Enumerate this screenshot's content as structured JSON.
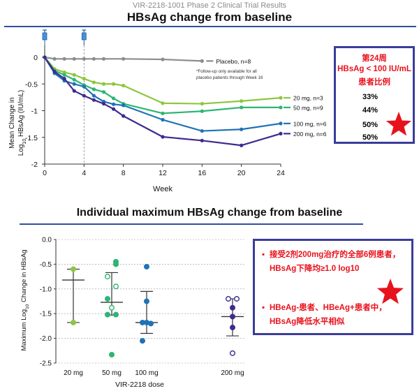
{
  "header": {
    "supertitle": "VIR-2218-1001 Phase 2 Clinical Trial Results",
    "title_top": "HBsAg change from baseline",
    "title_bottom": "Individual maximum HBsAg change from baseline"
  },
  "colors": {
    "accent_rule": "#2f4f9e",
    "box_border": "#3a3d9a",
    "highlight_red": "#e8121c",
    "star": "#e8121c"
  },
  "chart_data": [
    {
      "type": "line",
      "title": "HBsAg change from baseline",
      "xlabel": "Week",
      "ylabel": "Mean Change in Log10 HBsAg (IU/mL)",
      "ylabel_main": "Mean Change in",
      "ylabel_log_prefix": "Log",
      "ylabel_log_sub": "10",
      "ylabel_log_suffix": " HBsAg (IU/mL)",
      "xlim": [
        0,
        24
      ],
      "ylim": [
        -2,
        0.15
      ],
      "x_ticks": [
        0,
        4,
        8,
        12,
        16,
        20,
        24
      ],
      "y_ticks": [
        0,
        -0.5,
        -1,
        -1.5,
        -2
      ],
      "y_tick_labels": [
        "0",
        "-0.5",
        "-1",
        "-1.5",
        "-2"
      ],
      "dose_weeks": [
        0,
        4
      ],
      "annotation": "*Follow-up only available for all placebo patients through Week 16",
      "annotation_line1": "*Follow-up only available for all",
      "annotation_line2": "placebo patients through Week 16",
      "series": [
        {
          "name": "Placebo, n=8",
          "color": "#8c8c8c",
          "x": [
            0,
            1,
            2,
            3,
            4,
            5,
            6,
            8,
            12,
            16
          ],
          "y": [
            0,
            -0.03,
            -0.03,
            -0.03,
            -0.03,
            -0.03,
            -0.03,
            -0.03,
            -0.04,
            -0.07
          ]
        },
        {
          "name": "20 mg, n=3",
          "color": "#8dc63f",
          "x": [
            0,
            1,
            2,
            3,
            4,
            5,
            6,
            7,
            8,
            12,
            16,
            20,
            24
          ],
          "y": [
            0,
            -0.22,
            -0.28,
            -0.33,
            -0.4,
            -0.47,
            -0.5,
            -0.5,
            -0.53,
            -0.86,
            -0.87,
            -0.82,
            -0.76
          ]
        },
        {
          "name": "50 mg, n=9",
          "color": "#2bb673",
          "x": [
            0,
            1,
            2,
            3,
            4,
            5,
            6,
            7,
            8,
            12,
            16,
            20,
            24
          ],
          "y": [
            0,
            -0.25,
            -0.33,
            -0.42,
            -0.52,
            -0.6,
            -0.65,
            -0.77,
            -0.87,
            -1.05,
            -1.01,
            -0.94,
            -0.94
          ]
        },
        {
          "name": "100 mg, n=6",
          "color": "#1f73b7",
          "x": [
            0,
            1,
            2,
            3,
            4,
            5,
            6,
            7,
            8,
            12,
            16,
            20,
            24
          ],
          "y": [
            0,
            -0.3,
            -0.44,
            -0.5,
            -0.55,
            -0.72,
            -0.83,
            -0.88,
            -0.9,
            -1.17,
            -1.38,
            -1.35,
            -1.24
          ]
        },
        {
          "name": "200 mg, n=6",
          "color": "#3f2a8f",
          "x": [
            0,
            1,
            2,
            3,
            4,
            5,
            6,
            7,
            8,
            12,
            16,
            20,
            24
          ],
          "y": [
            0,
            -0.27,
            -0.4,
            -0.63,
            -0.72,
            -0.8,
            -0.87,
            -0.97,
            -1.1,
            -1.49,
            -1.56,
            -1.65,
            -1.43
          ]
        }
      ]
    },
    {
      "type": "scatter",
      "title": "Individual maximum HBsAg change from baseline",
      "xlabel": "VIR-2218 dose",
      "ylabel": "Maximum Log10 Change in HBsAg",
      "ylabel_prefix": "Maximum Log",
      "ylabel_sub": "10",
      "ylabel_suffix": " Change in HBsAg",
      "ylim": [
        -2.5,
        0
      ],
      "y_ticks": [
        0,
        -0.5,
        -1,
        -1.5,
        -2,
        -2.5
      ],
      "y_tick_labels": [
        "0.0",
        "-0.5",
        "-1.0",
        "-1.5",
        "-2.0",
        "-2.5"
      ],
      "categories": [
        "20 mg",
        "50 mg",
        "100 mg",
        "200 mg"
      ],
      "groups": [
        {
          "category": "20 mg",
          "color": "#8dc63f",
          "median": -0.82,
          "whisker": [
            -0.6,
            -1.68
          ],
          "points": [
            {
              "y": -0.6,
              "filled": true,
              "jitter": 0
            },
            {
              "y": -1.68,
              "filled": true,
              "jitter": 0
            }
          ]
        },
        {
          "category": "50 mg",
          "color": "#2bb673",
          "median": -1.27,
          "whisker": [
            -0.67,
            -1.53
          ],
          "points": [
            {
              "y": -0.45,
              "filled": true,
              "jitter": 1
            },
            {
              "y": -0.5,
              "filled": true,
              "jitter": 1
            },
            {
              "y": -0.75,
              "filled": false,
              "jitter": -1
            },
            {
              "y": -0.95,
              "filled": false,
              "jitter": 1
            },
            {
              "y": -1.2,
              "filled": true,
              "jitter": -1
            },
            {
              "y": -1.38,
              "filled": false,
              "jitter": 0
            },
            {
              "y": -1.52,
              "filled": true,
              "jitter": -1
            },
            {
              "y": -1.52,
              "filled": true,
              "jitter": 1
            },
            {
              "y": -2.33,
              "filled": true,
              "jitter": 0
            }
          ]
        },
        {
          "category": "100 mg",
          "color": "#1f73b7",
          "median": -1.68,
          "whisker": [
            -1.05,
            -1.9
          ],
          "points": [
            {
              "y": -0.55,
              "filled": true,
              "jitter": 0
            },
            {
              "y": -1.25,
              "filled": true,
              "jitter": 0
            },
            {
              "y": -1.68,
              "filled": true,
              "jitter": -1
            },
            {
              "y": -1.68,
              "filled": true,
              "jitter": 0
            },
            {
              "y": -1.7,
              "filled": true,
              "jitter": 1
            },
            {
              "y": -2.05,
              "filled": true,
              "jitter": -1
            }
          ]
        },
        {
          "category": "200 mg",
          "color": "#3f2a8f",
          "median": -1.56,
          "whisker": [
            -1.2,
            -1.95
          ],
          "points": [
            {
              "y": -1.2,
              "filled": false,
              "jitter": -1
            },
            {
              "y": -1.2,
              "filled": false,
              "jitter": 1
            },
            {
              "y": -1.38,
              "filled": true,
              "jitter": 0
            },
            {
              "y": -1.56,
              "filled": true,
              "jitter": 0
            },
            {
              "y": -1.78,
              "filled": true,
              "jitter": 0
            },
            {
              "y": -2.3,
              "filled": false,
              "jitter": 0
            }
          ]
        }
      ]
    }
  ],
  "week24_box": {
    "heading_line1": "第24周",
    "heading_line2": "HBsAg < 100 IU/mL",
    "heading_line3": "患者比例",
    "percentages": [
      {
        "value": "33%",
        "color": "#8dc63f"
      },
      {
        "value": "44%",
        "color": "#2bb673"
      },
      {
        "value": "50%",
        "color": "#1f73b7"
      },
      {
        "value": "50%",
        "color": "#3f2a8f"
      }
    ]
  },
  "summary_box": {
    "bullet_symbol": "▪",
    "bullet1": "接受2剂200mg治疗的全部6例患者，HBsAg下降均≥1.0 log10",
    "bullet2": "HBeAg-患者、HBeAg+患者中，HBsAg降低水平相似"
  }
}
